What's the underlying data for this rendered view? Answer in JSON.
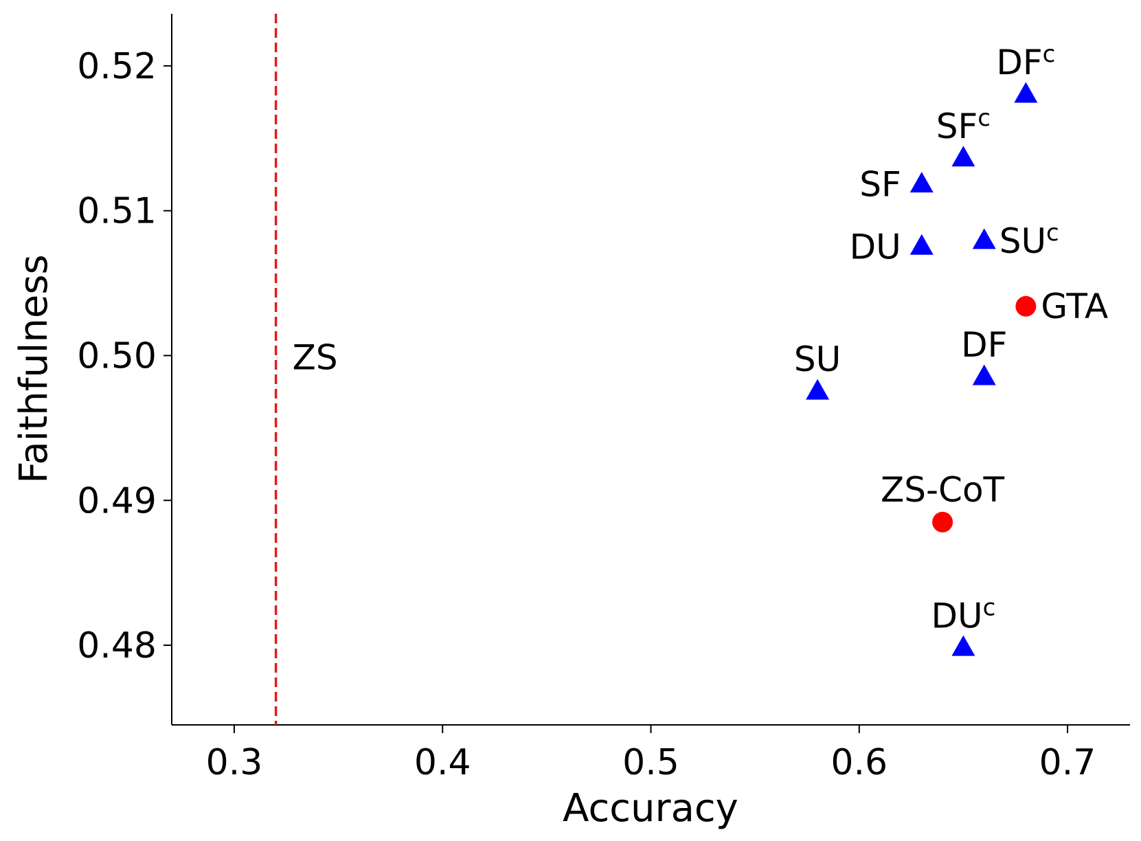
{
  "chart_data": {
    "type": "scatter",
    "title": "",
    "xlabel": "Accuracy",
    "ylabel": "Faithfulness",
    "xlim": [
      0.27,
      0.73
    ],
    "ylim": [
      0.4745,
      0.5236
    ],
    "xticks": [
      {
        "value": 0.3,
        "label": "0.3"
      },
      {
        "value": 0.4,
        "label": "0.4"
      },
      {
        "value": 0.5,
        "label": "0.5"
      },
      {
        "value": 0.6,
        "label": "0.6"
      },
      {
        "value": 0.7,
        "label": "0.7"
      }
    ],
    "yticks": [
      {
        "value": 0.48,
        "label": "0.48"
      },
      {
        "value": 0.49,
        "label": "0.49"
      },
      {
        "value": 0.5,
        "label": "0.50"
      },
      {
        "value": 0.51,
        "label": "0.51"
      },
      {
        "value": 0.52,
        "label": "0.52"
      }
    ],
    "grid": false,
    "reference_line": {
      "orientation": "vertical",
      "x": 0.32,
      "label": "ZS",
      "label_y": 0.4999,
      "color": "#e31a1c",
      "style": "dashed"
    },
    "series": [
      {
        "name": "triangles",
        "marker": "triangle",
        "color": "#0000ff",
        "points": [
          {
            "x": 0.68,
            "y": 0.518,
            "label": "DF",
            "sup": "c",
            "anchor": "above"
          },
          {
            "x": 0.65,
            "y": 0.5136,
            "label": "SF",
            "sup": "c",
            "anchor": "above"
          },
          {
            "x": 0.63,
            "y": 0.5118,
            "label": "SF",
            "sup": "",
            "anchor": "left"
          },
          {
            "x": 0.63,
            "y": 0.5075,
            "label": "DU",
            "sup": "",
            "anchor": "left"
          },
          {
            "x": 0.66,
            "y": 0.5079,
            "label": "SU",
            "sup": "c",
            "anchor": "right"
          },
          {
            "x": 0.66,
            "y": 0.4985,
            "label": "DF",
            "sup": "",
            "anchor": "above"
          },
          {
            "x": 0.58,
            "y": 0.4975,
            "label": "SU",
            "sup": "",
            "anchor": "above"
          },
          {
            "x": 0.65,
            "y": 0.4798,
            "label": "DU",
            "sup": "c",
            "anchor": "above"
          }
        ]
      },
      {
        "name": "circles",
        "marker": "circle",
        "color": "#ff0000",
        "points": [
          {
            "x": 0.68,
            "y": 0.5034,
            "label": "GTA",
            "sup": "",
            "anchor": "right"
          },
          {
            "x": 0.64,
            "y": 0.4885,
            "label": "ZS-CoT",
            "sup": "",
            "anchor": "above"
          }
        ]
      }
    ]
  }
}
